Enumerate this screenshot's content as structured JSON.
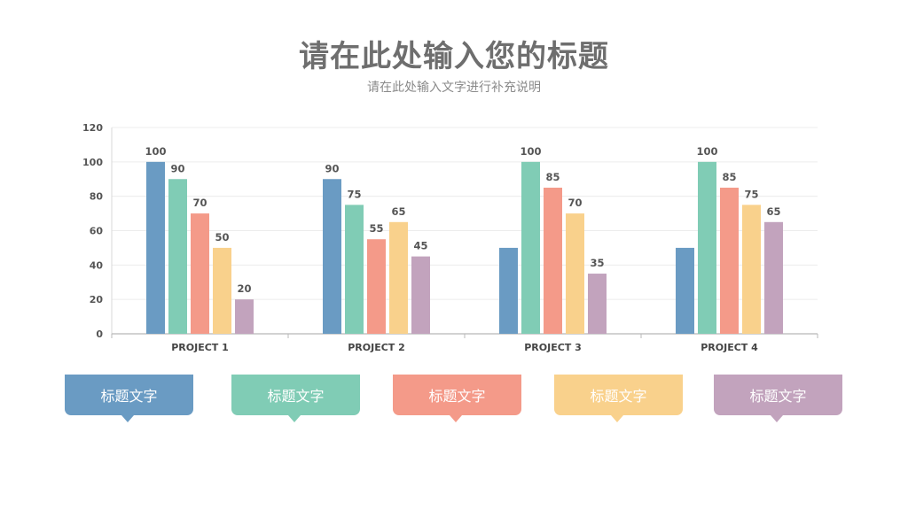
{
  "header": {
    "title": "请在此处输入您的标题",
    "subtitle": "请在此处输入文字进行补充说明"
  },
  "colors": [
    "#6a9bc3",
    "#80ccb5",
    "#f49a89",
    "#f9d18c",
    "#c2a3bd"
  ],
  "chart_data": {
    "type": "bar",
    "categories": [
      "PROJECT 1",
      "PROJECT 2",
      "PROJECT 3",
      "PROJECT 4"
    ],
    "series": [
      {
        "values": [
          100,
          90,
          50,
          50
        ]
      },
      {
        "values": [
          90,
          75,
          100,
          100
        ]
      },
      {
        "values": [
          70,
          55,
          85,
          85
        ]
      },
      {
        "values": [
          50,
          65,
          70,
          75
        ]
      },
      {
        "values": [
          20,
          45,
          35,
          65
        ]
      }
    ],
    "data_labels": [
      [
        "100",
        "90",
        "70",
        "50",
        "20"
      ],
      [
        "90",
        "75",
        "55",
        "65",
        "45"
      ],
      [
        "",
        "100",
        "85",
        "70",
        "35"
      ],
      [
        "",
        "100",
        "85",
        "75",
        "65"
      ]
    ],
    "ylim": [
      0,
      120
    ],
    "yticks": [
      0,
      20,
      40,
      60,
      80,
      100,
      120
    ],
    "grid": true,
    "xlabel": "",
    "ylabel": ""
  },
  "callouts": [
    {
      "label": "标题文字"
    },
    {
      "label": "标题文字"
    },
    {
      "label": "标题文字"
    },
    {
      "label": "标题文字"
    },
    {
      "label": "标题文字"
    }
  ]
}
